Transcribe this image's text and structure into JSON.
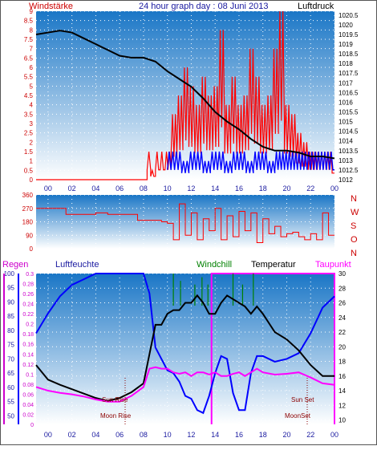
{
  "header": {
    "wind_label": "Windstärke",
    "title": "24 hour graph day : 08 Juni 2013",
    "pressure_label": "Luftdruck",
    "compass": [
      "N",
      "W",
      "S",
      "O",
      "N"
    ],
    "rain_label": "Regen",
    "humidity_label": "Luftfeuchte",
    "windchill_label": "Windchill",
    "temperature_label": "Temperatur",
    "dewpoint_label": "Taupunkt"
  },
  "annotations": {
    "sun_rise": "Sun Rise",
    "moon_rise": "Moon Rise",
    "sun_set": "Sun Set",
    "moon_set": "MoonSet"
  },
  "colors": {
    "wind": "#ff0000",
    "gust": "#0000ff",
    "pressure": "#000000",
    "direction": "#ff0000",
    "humidity": "#0000ff",
    "temperature": "#000000",
    "dewpoint": "#ff00ff",
    "windchill": "#008000",
    "rain": "#ff00ff",
    "sky_top": "#1a76c6",
    "sky_bottom": "#ffffff"
  },
  "chart_data": [
    {
      "type": "line",
      "title": "24 hour graph day : 08 Juni 2013",
      "x_ticks": [
        "00",
        "02",
        "04",
        "06",
        "08",
        "10",
        "12",
        "14",
        "16",
        "18",
        "20",
        "22",
        "00"
      ],
      "y_left_ticks": [
        "0",
        "0.5",
        "1",
        "1.5",
        "2",
        "2.5",
        "3",
        "3.5",
        "4",
        "4.5",
        "5",
        "5.5",
        "6",
        "6.5",
        "7",
        "7.5",
        "8",
        "8.5",
        "9"
      ],
      "y_right_ticks": [
        "1012",
        "1012.5",
        "1013",
        "1013.5",
        "1014",
        "1014.5",
        "1015",
        "1015.5",
        "1016",
        "1016.5",
        "1017",
        "1017.5",
        "1018",
        "1018.5",
        "1019",
        "1019.5",
        "1020",
        "1020.5"
      ],
      "ylim_left": [
        0,
        9
      ],
      "ylim_right": [
        1012,
        1020.7
      ],
      "pressure": {
        "hours": [
          -1,
          0,
          1,
          2,
          3,
          4,
          5,
          6,
          7,
          8,
          9,
          10,
          11,
          12,
          13,
          14,
          15,
          16,
          17,
          18,
          19,
          20,
          21,
          22,
          23,
          24
        ],
        "values": [
          1019.5,
          1019.6,
          1019.7,
          1019.6,
          1019.3,
          1019.0,
          1018.7,
          1018.4,
          1018.3,
          1018.3,
          1018.1,
          1017.6,
          1017.2,
          1016.8,
          1016.2,
          1015.5,
          1015.0,
          1014.6,
          1014.1,
          1013.7,
          1013.5,
          1013.5,
          1013.4,
          1013.2,
          1013.2,
          1013.1
        ]
      },
      "wind": {
        "hours": [
          -1,
          8.3,
          8.6,
          9.0,
          9.4,
          9.8,
          10.3,
          10.8,
          11.3,
          11.8,
          12.3,
          12.8,
          13.3,
          13.8,
          14.3,
          14.8,
          15.3,
          15.8,
          16.3,
          16.8,
          17.3,
          17.8,
          18.3,
          18.8,
          19.3,
          19.8,
          20.3,
          20.8,
          21.3,
          21.8,
          22.3,
          22.8,
          23.3,
          23.8
        ],
        "values": [
          0,
          1.5,
          0.5,
          1.5,
          1.5,
          1.5,
          3.5,
          4.5,
          6,
          5,
          4,
          5.5,
          4.5,
          5,
          8,
          4,
          5.5,
          4,
          4.5,
          7,
          5.5,
          4,
          4.5,
          7,
          9,
          4,
          3.5,
          2.5,
          2,
          1.5,
          1.5,
          1.5,
          1.5,
          1
        ]
      },
      "gust": {
        "hours": [
          10,
          10.6,
          11.2,
          11.8,
          12.4,
          13,
          13.6,
          14.2,
          14.8,
          15.4,
          16,
          16.6,
          17.2,
          17.8,
          18.4,
          19
        ],
        "values": [
          1.5,
          1.5,
          1,
          1.5,
          1.5,
          1,
          1.5,
          1.5,
          1,
          1.5,
          1.5,
          1,
          1.5,
          1.5,
          1,
          1.5
        ]
      }
    },
    {
      "type": "line",
      "y_ticks": [
        "360",
        "270",
        "180",
        "90",
        "0"
      ],
      "ylim": [
        0,
        360
      ],
      "direction": {
        "hours": [
          -1,
          1,
          1.5,
          3,
          4,
          5,
          7,
          7.5,
          8.5,
          9.5,
          10,
          10.5,
          11,
          11.5,
          12,
          12.5,
          13,
          13.5,
          14,
          14.5,
          15,
          15.5,
          16,
          16.5,
          17,
          17.5,
          18,
          18.5,
          19,
          19.5,
          20,
          20.5,
          21,
          21.5,
          22,
          22.5,
          23,
          23.5
        ],
        "values": [
          270,
          270,
          230,
          230,
          240,
          230,
          230,
          190,
          190,
          180,
          170,
          60,
          300,
          90,
          240,
          60,
          200,
          120,
          270,
          60,
          220,
          80,
          250,
          120,
          240,
          40,
          200,
          100,
          150,
          80,
          100,
          110,
          80,
          60,
          100,
          60,
          240,
          90
        ]
      }
    },
    {
      "type": "line",
      "x_ticks": [
        "00",
        "02",
        "04",
        "06",
        "08",
        "10",
        "12",
        "14",
        "16",
        "18",
        "20",
        "22",
        "00"
      ],
      "y_rain_ticks": [
        "0",
        "0.02",
        "0.04",
        "0.06",
        "0.08",
        "0.1",
        "0.12",
        "0.14",
        "0.16",
        "0.18",
        "0.2",
        "0.22",
        "0.24",
        "0.26",
        "0.28",
        "0.3"
      ],
      "y_humidity_ticks": [
        "50",
        "55",
        "60",
        "65",
        "70",
        "75",
        "80",
        "85",
        "90",
        "95",
        "100"
      ],
      "y_temperature_ticks": [
        "10",
        "12",
        "14",
        "16",
        "18",
        "20",
        "22",
        "24",
        "26",
        "28",
        "30"
      ],
      "ylim_humidity": [
        47,
        100
      ],
      "ylim_temperature": [
        9.4,
        30
      ],
      "humidity": {
        "hours": [
          -1,
          0,
          1,
          2,
          3,
          4,
          5,
          6,
          7,
          8,
          8.5,
          9,
          9.5,
          10,
          10.5,
          11,
          11.5,
          12,
          12.5,
          13,
          13.5,
          14,
          14.5,
          15,
          15.5,
          16,
          16.5,
          17,
          17.5,
          18,
          19,
          20,
          21,
          22,
          23,
          24
        ],
        "values": [
          79,
          86,
          92,
          96,
          98,
          100,
          100,
          100,
          100,
          100,
          93,
          74,
          70,
          66,
          65,
          62,
          57,
          56,
          52,
          51,
          57,
          65,
          71,
          70,
          58,
          52,
          52,
          65,
          71,
          71,
          69,
          70,
          72,
          79,
          88,
          92
        ]
      },
      "temperature": {
        "hours": [
          -1,
          0,
          1,
          2,
          3,
          4,
          5,
          6,
          7,
          8,
          8.5,
          9,
          9.5,
          10,
          10.5,
          11,
          11.5,
          12,
          12.5,
          13,
          13.5,
          14,
          14.5,
          15,
          15.5,
          16,
          16.5,
          17,
          17.5,
          18,
          19,
          20,
          21,
          22,
          23,
          24
        ],
        "values": [
          17.5,
          15.5,
          14.8,
          14.2,
          13.6,
          13.0,
          12.6,
          13.0,
          13.8,
          15.0,
          19.0,
          23.0,
          23.0,
          24.5,
          25.0,
          25.0,
          26.0,
          26.0,
          27.0,
          26.0,
          24.5,
          24.5,
          26.0,
          27.0,
          26.5,
          26.0,
          25.5,
          24.5,
          25.5,
          24.5,
          22.0,
          21.0,
          19.5,
          17.5,
          16.0,
          16.0
        ]
      },
      "dewpoint": {
        "hours": [
          -1,
          0,
          1,
          2,
          3,
          4,
          5,
          6,
          7,
          8,
          8.5,
          9,
          9.5,
          10,
          10.5,
          11,
          11.5,
          12,
          12.5,
          13,
          13.5,
          14,
          14.5,
          15,
          15.5,
          16,
          16.5,
          17,
          17.5,
          18,
          19,
          20,
          21,
          22,
          23,
          24
        ],
        "values": [
          14.5,
          14.0,
          13.7,
          13.5,
          13.2,
          12.8,
          12.5,
          12.5,
          13.3,
          14.5,
          17.0,
          17.2,
          17.0,
          17.0,
          16.5,
          16.3,
          16.5,
          16.0,
          16.5,
          16.5,
          16.2,
          16.5,
          16.0,
          16.0,
          16.3,
          16.5,
          16.0,
          16.5,
          17.0,
          16.5,
          16.2,
          16.3,
          16.5,
          15.8,
          15.0,
          14.8
        ]
      },
      "windchill_spikes": {
        "hours": [
          10.5,
          11.1,
          12.3,
          12.9,
          13.4,
          15.5,
          16.3,
          17.2
        ],
        "values": [
          30,
          29,
          28.5,
          29.5,
          28.5,
          30,
          28.5,
          30
        ]
      },
      "rain": {
        "hours": [
          13.7,
          13.7,
          24,
          24
        ],
        "values": [
          0,
          0.3,
          0.3,
          0
        ]
      }
    }
  ]
}
